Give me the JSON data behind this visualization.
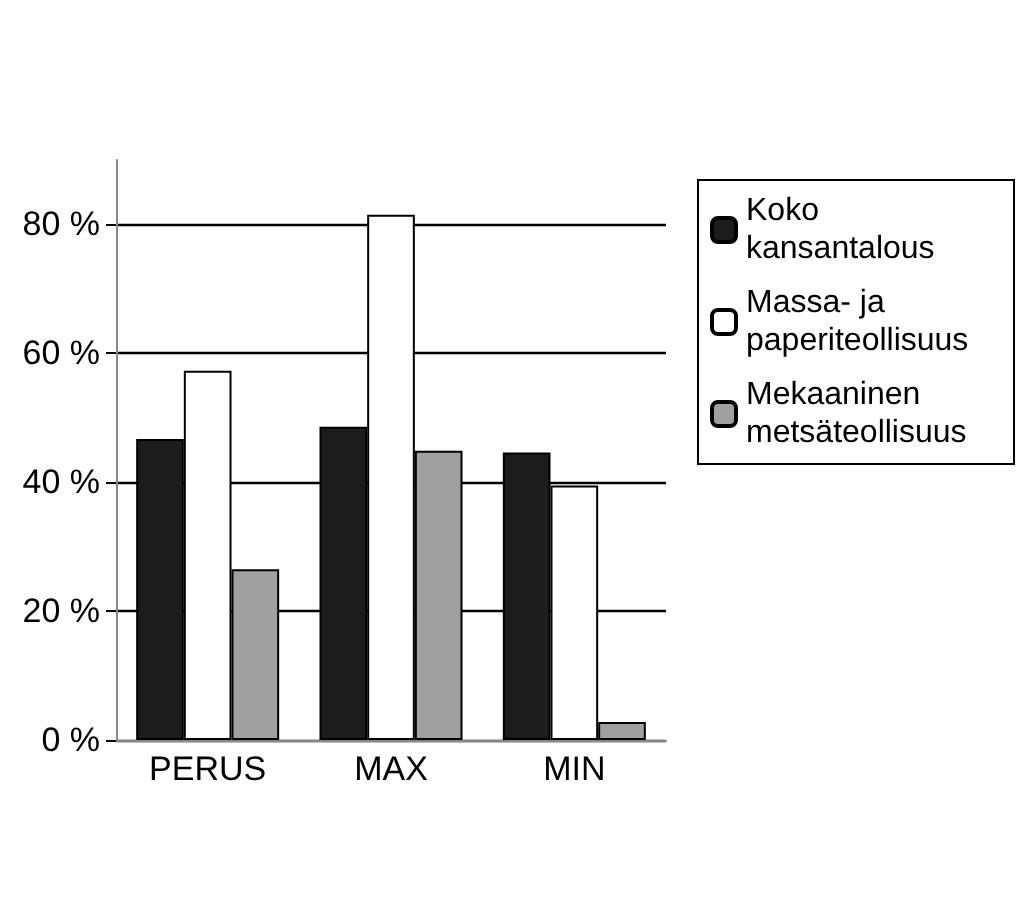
{
  "chart_data": {
    "type": "bar",
    "categories": [
      "PERUS",
      "MAX",
      "MIN"
    ],
    "series": [
      {
        "name": "Koko kansantalous",
        "color": "#1c1c1c",
        "values": [
          46.7,
          48.6,
          44.6
        ]
      },
      {
        "name": "Massa- ja paperiteollisuus",
        "color": "#ffffff",
        "values": [
          57.3,
          81.5,
          39.5
        ]
      },
      {
        "name": "Mekaaninen metsäteollisuus",
        "color": "#a0a0a0",
        "values": [
          26.5,
          44.9,
          2.8
        ]
      }
    ],
    "ylim": [
      0,
      90
    ],
    "yticks": [
      {
        "value": 0,
        "label": "0 %"
      },
      {
        "value": 20,
        "label": "20 %"
      },
      {
        "value": 40,
        "label": "40 %"
      },
      {
        "value": 60,
        "label": "60 %"
      },
      {
        "value": 80,
        "label": "80 %"
      }
    ],
    "grid": "y",
    "legend": "right"
  }
}
